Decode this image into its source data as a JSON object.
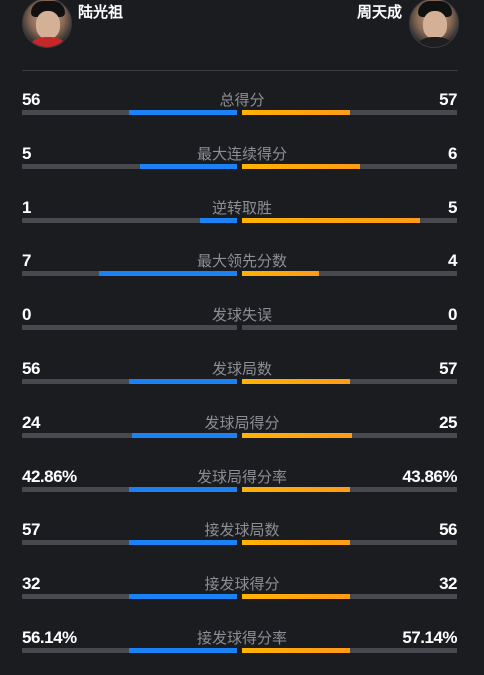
{
  "players": {
    "left": {
      "name": "陆光祖",
      "color": "#1a82f5"
    },
    "right": {
      "name": "周天成",
      "color": "#ffa41a"
    }
  },
  "stats": [
    {
      "label": "总得分",
      "left": "56",
      "right": "57",
      "left_ratio": 0.5,
      "right_ratio": 0.5
    },
    {
      "label": "最大连续得分",
      "left": "5",
      "right": "6",
      "left_ratio": 0.45,
      "right_ratio": 0.55
    },
    {
      "label": "逆转取胜",
      "left": "1",
      "right": "5",
      "left_ratio": 0.17,
      "right_ratio": 0.83
    },
    {
      "label": "最大领先分数",
      "left": "7",
      "right": "4",
      "left_ratio": 0.64,
      "right_ratio": 0.36
    },
    {
      "label": "发球失误",
      "left": "0",
      "right": "0",
      "left_ratio": 0,
      "right_ratio": 0
    },
    {
      "label": "发球局数",
      "left": "56",
      "right": "57",
      "left_ratio": 0.5,
      "right_ratio": 0.5
    },
    {
      "label": "发球局得分",
      "left": "24",
      "right": "25",
      "left_ratio": 0.49,
      "right_ratio": 0.51
    },
    {
      "label": "发球局得分率",
      "left": "42.86%",
      "right": "43.86%",
      "left_ratio": 0.5,
      "right_ratio": 0.5
    },
    {
      "label": "接发球局数",
      "left": "57",
      "right": "56",
      "left_ratio": 0.5,
      "right_ratio": 0.5
    },
    {
      "label": "接发球得分",
      "left": "32",
      "right": "32",
      "left_ratio": 0.5,
      "right_ratio": 0.5
    },
    {
      "label": "接发球得分率",
      "left": "56.14%",
      "right": "57.14%",
      "left_ratio": 0.5,
      "right_ratio": 0.5
    }
  ]
}
